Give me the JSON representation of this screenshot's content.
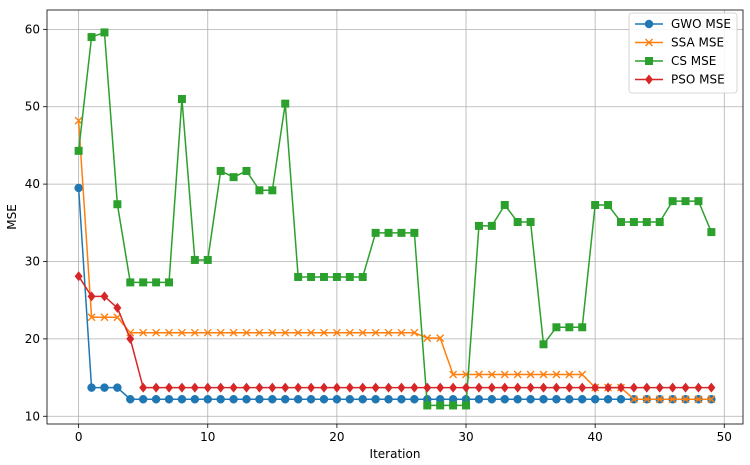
{
  "chart_data": {
    "type": "line",
    "title": "",
    "xlabel": "Iteration",
    "ylabel": "MSE",
    "xlim": [
      -2.45,
      51.45
    ],
    "ylim": [
      9.0,
      62.5
    ],
    "xticks": [
      0,
      10,
      20,
      30,
      40,
      50
    ],
    "yticks": [
      10,
      20,
      30,
      40,
      50,
      60
    ],
    "grid": true,
    "legend_position": "top-right",
    "x": [
      0,
      1,
      2,
      3,
      4,
      5,
      6,
      7,
      8,
      9,
      10,
      11,
      12,
      13,
      14,
      15,
      16,
      17,
      18,
      19,
      20,
      21,
      22,
      23,
      24,
      25,
      26,
      27,
      28,
      29,
      30,
      31,
      32,
      33,
      34,
      35,
      36,
      37,
      38,
      39,
      40,
      41,
      42,
      43,
      44,
      45,
      46,
      47,
      48,
      49
    ],
    "series": [
      {
        "name": "GWO MSE",
        "color": "#1f77b4",
        "marker": "circle",
        "values": [
          39.5,
          13.7,
          13.7,
          13.7,
          12.2,
          12.2,
          12.2,
          12.2,
          12.2,
          12.2,
          12.2,
          12.2,
          12.2,
          12.2,
          12.2,
          12.2,
          12.2,
          12.2,
          12.2,
          12.2,
          12.2,
          12.2,
          12.2,
          12.2,
          12.2,
          12.2,
          12.2,
          12.2,
          12.2,
          12.2,
          12.2,
          12.2,
          12.2,
          12.2,
          12.2,
          12.2,
          12.2,
          12.2,
          12.2,
          12.2,
          12.2,
          12.2,
          12.2,
          12.2,
          12.2,
          12.2,
          12.2,
          12.2,
          12.2,
          12.2
        ]
      },
      {
        "name": "SSA MSE",
        "color": "#ff7f0e",
        "marker": "x",
        "values": [
          48.2,
          22.8,
          22.8,
          22.8,
          20.8,
          20.8,
          20.8,
          20.8,
          20.8,
          20.8,
          20.8,
          20.8,
          20.8,
          20.8,
          20.8,
          20.8,
          20.8,
          20.8,
          20.8,
          20.8,
          20.8,
          20.8,
          20.8,
          20.8,
          20.8,
          20.8,
          20.8,
          20.1,
          20.1,
          15.4,
          15.4,
          15.4,
          15.4,
          15.4,
          15.4,
          15.4,
          15.4,
          15.4,
          15.4,
          15.4,
          13.7,
          13.7,
          13.7,
          12.2,
          12.2,
          12.2,
          12.2,
          12.2,
          12.2,
          12.2
        ]
      },
      {
        "name": "CS MSE",
        "color": "#2ca02c",
        "marker": "square",
        "values": [
          44.3,
          59.0,
          59.6,
          37.4,
          27.3,
          27.3,
          27.3,
          27.3,
          51.0,
          30.2,
          30.2,
          41.7,
          40.9,
          41.7,
          39.2,
          39.2,
          50.4,
          28.0,
          28.0,
          28.0,
          28.0,
          28.0,
          28.0,
          33.7,
          33.7,
          33.7,
          33.7,
          11.4,
          11.4,
          11.4,
          11.4,
          34.6,
          34.6,
          37.3,
          35.1,
          35.1,
          19.3,
          21.5,
          21.5,
          21.5,
          37.3,
          37.3,
          35.1,
          35.1,
          35.1,
          35.1,
          37.8,
          37.8,
          37.8,
          33.8
        ]
      },
      {
        "name": "PSO MSE",
        "color": "#d62728",
        "marker": "diamond",
        "values": [
          28.1,
          25.5,
          25.5,
          24.0,
          20.0,
          13.7,
          13.7,
          13.7,
          13.7,
          13.7,
          13.7,
          13.7,
          13.7,
          13.7,
          13.7,
          13.7,
          13.7,
          13.7,
          13.7,
          13.7,
          13.7,
          13.7,
          13.7,
          13.7,
          13.7,
          13.7,
          13.7,
          13.7,
          13.7,
          13.7,
          13.7,
          13.7,
          13.7,
          13.7,
          13.7,
          13.7,
          13.7,
          13.7,
          13.7,
          13.7,
          13.7,
          13.7,
          13.7,
          13.7,
          13.7,
          13.7,
          13.7,
          13.7,
          13.7,
          13.7
        ]
      }
    ]
  }
}
